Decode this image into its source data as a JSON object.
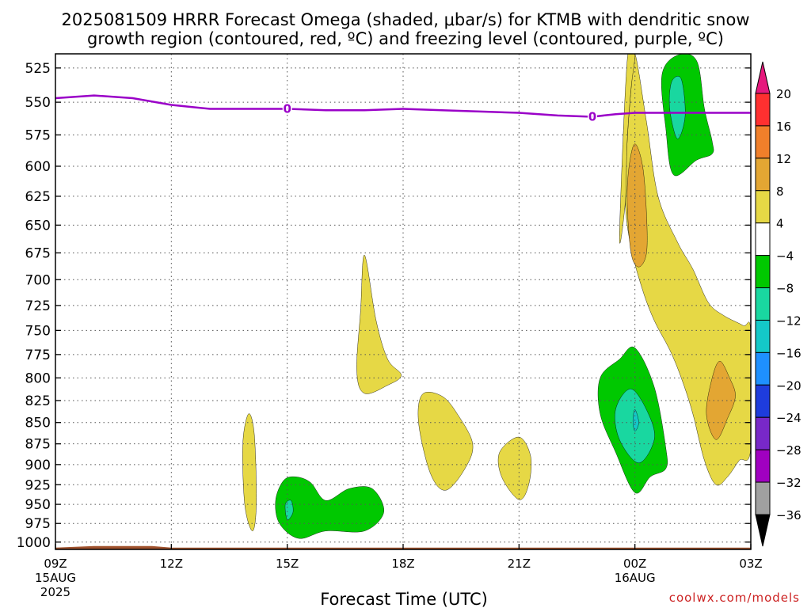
{
  "title": {
    "line1": "2025081509 HRRR Forecast Omega (shaded, μbar/s) for KTMB with dendritic snow",
    "line2": "growth region (contoured, red, ºC) and freezing level (contoured, purple, ºC)"
  },
  "credit": "coolwx.com/models",
  "colors": {
    "freezing_line": "#9a00c8",
    "ground": "#a0522d",
    "grid": "#555555"
  },
  "chart_data": {
    "type": "contour",
    "title": "2025081509 HRRR Forecast Omega (shaded, μbar/s) for KTMB with dendritic snow growth region (contoured, red, ºC) and freezing level (contoured, purple, ºC)",
    "xlabel": "Forecast Time (UTC)",
    "ylabel": "",
    "x_unit": "hours from 2025-08-15 09Z",
    "xlim": [
      0,
      18
    ],
    "ylim": [
      1010,
      515
    ],
    "y_scale": "log",
    "y_ticks": [
      525,
      550,
      575,
      600,
      625,
      650,
      675,
      700,
      725,
      750,
      775,
      800,
      825,
      850,
      875,
      900,
      925,
      950,
      975,
      1000
    ],
    "x_ticks": [
      {
        "x": 0,
        "label": "09Z",
        "sub": "15AUG",
        "sub2": "2025"
      },
      {
        "x": 3,
        "label": "12Z",
        "sub": "",
        "sub2": ""
      },
      {
        "x": 6,
        "label": "15Z",
        "sub": "",
        "sub2": ""
      },
      {
        "x": 9,
        "label": "18Z",
        "sub": "",
        "sub2": ""
      },
      {
        "x": 12,
        "label": "21Z",
        "sub": "",
        "sub2": ""
      },
      {
        "x": 15,
        "label": "00Z",
        "sub": "16AUG",
        "sub2": ""
      },
      {
        "x": 18,
        "label": "03Z",
        "sub": "",
        "sub2": ""
      }
    ],
    "grid": true,
    "colorbar": {
      "levels": [
        20,
        16,
        12,
        8,
        4,
        -4,
        -8,
        -12,
        -16,
        -20,
        -24,
        -28,
        -32,
        -36
      ],
      "colors": [
        "#ff3030",
        "#f07f2a",
        "#e3a633",
        "#e6d845",
        "#ffffff",
        "#00c800",
        "#19d7a0",
        "#14c8c8",
        "#1e90ff",
        "#1e3cdc",
        "#7828c8",
        "#a000c0",
        "#a0a0a0"
      ],
      "top_color": "#e6197d",
      "bottom_color": "#000000"
    },
    "freezing_level": {
      "label": "0",
      "label_at": [
        6,
        13.9
      ],
      "x": [
        0,
        1,
        2,
        3,
        4,
        5,
        6,
        7,
        8,
        9,
        10,
        11,
        12,
        13,
        13.9,
        14.5,
        15,
        16,
        17,
        18
      ],
      "p": [
        547,
        545,
        547,
        552,
        555,
        555,
        555,
        556,
        556,
        555,
        556,
        557,
        558,
        560,
        561,
        559,
        558,
        558,
        558,
        558
      ]
    },
    "omega_regions": [
      {
        "level": 4,
        "color": "#e6d845",
        "points": [
          [
            15.0,
            515
          ],
          [
            15.3,
            565
          ],
          [
            15.6,
            625
          ],
          [
            16.1,
            665
          ],
          [
            16.5,
            690
          ],
          [
            16.9,
            722
          ],
          [
            17.3,
            735
          ],
          [
            17.8,
            745
          ],
          [
            18.0,
            752
          ],
          [
            18.0,
            880
          ],
          [
            17.7,
            895
          ],
          [
            17.4,
            915
          ],
          [
            17.1,
            925
          ],
          [
            16.8,
            895
          ],
          [
            16.5,
            840
          ],
          [
            16.2,
            800
          ],
          [
            15.9,
            770
          ],
          [
            15.5,
            740
          ],
          [
            15.2,
            710
          ],
          [
            14.9,
            670
          ],
          [
            14.75,
            630
          ],
          [
            14.8,
            580
          ],
          [
            14.9,
            540
          ]
        ]
      },
      {
        "level": 8,
        "color": "#e3a633",
        "points": [
          [
            15.0,
            582
          ],
          [
            15.2,
            600
          ],
          [
            15.3,
            640
          ],
          [
            15.3,
            675
          ],
          [
            15.1,
            688
          ],
          [
            14.9,
            675
          ],
          [
            14.8,
            630
          ],
          [
            14.85,
            600
          ]
        ]
      },
      {
        "level": 8,
        "color": "#e3a633",
        "points": [
          [
            17.0,
            800
          ],
          [
            17.2,
            782
          ],
          [
            17.45,
            800
          ],
          [
            17.6,
            820
          ],
          [
            17.4,
            845
          ],
          [
            17.1,
            870
          ],
          [
            16.85,
            840
          ]
        ]
      },
      {
        "level": 4,
        "color": "#e6d845",
        "points": [
          [
            5.0,
            840
          ],
          [
            5.15,
            865
          ],
          [
            5.2,
            950
          ],
          [
            5.1,
            985
          ],
          [
            4.9,
            950
          ],
          [
            4.85,
            875
          ]
        ]
      },
      {
        "level": 4,
        "color": "#e6d845",
        "points": [
          [
            8.0,
            677
          ],
          [
            8.3,
            740
          ],
          [
            8.6,
            780
          ],
          [
            8.95,
            797
          ],
          [
            8.6,
            808
          ],
          [
            8.0,
            817
          ],
          [
            7.8,
            792
          ],
          [
            7.9,
            730
          ]
        ]
      },
      {
        "level": 4,
        "color": "#e6d845",
        "points": [
          [
            9.5,
            818
          ],
          [
            10.0,
            820
          ],
          [
            10.4,
            840
          ],
          [
            10.8,
            875
          ],
          [
            10.6,
            905
          ],
          [
            10.1,
            932
          ],
          [
            9.7,
            910
          ],
          [
            9.4,
            850
          ]
        ]
      },
      {
        "level": 4,
        "color": "#e6d845",
        "points": [
          [
            12.0,
            867
          ],
          [
            12.3,
            890
          ],
          [
            12.25,
            925
          ],
          [
            12.0,
            944
          ],
          [
            11.55,
            915
          ],
          [
            11.5,
            885
          ]
        ]
      },
      {
        "level": 4,
        "color": "#e6d845",
        "points": [
          [
            15.0,
            515
          ],
          [
            14.9,
            540
          ],
          [
            14.8,
            580
          ],
          [
            14.75,
            630
          ],
          [
            14.6,
            660
          ],
          [
            14.8,
            520
          ]
        ]
      },
      {
        "level": -4,
        "color": "#00c800",
        "points": [
          [
            16.1,
            516
          ],
          [
            16.6,
            520
          ],
          [
            16.8,
            555
          ],
          [
            17.0,
            580
          ],
          [
            17.0,
            590
          ],
          [
            16.6,
            595
          ],
          [
            16.0,
            607
          ],
          [
            15.8,
            570
          ],
          [
            15.7,
            530
          ]
        ]
      },
      {
        "level": -8,
        "color": "#19d7a0",
        "points": [
          [
            15.95,
            535
          ],
          [
            16.2,
            533
          ],
          [
            16.3,
            560
          ],
          [
            16.1,
            578
          ],
          [
            15.9,
            555
          ]
        ]
      },
      {
        "level": -4,
        "color": "#00c800",
        "points": [
          [
            14.6,
            780
          ],
          [
            15.0,
            768
          ],
          [
            15.5,
            810
          ],
          [
            15.8,
            880
          ],
          [
            15.8,
            905
          ],
          [
            15.4,
            915
          ],
          [
            15.0,
            935
          ],
          [
            14.5,
            885
          ],
          [
            14.1,
            840
          ],
          [
            14.1,
            800
          ]
        ]
      },
      {
        "level": -8,
        "color": "#19d7a0",
        "points": [
          [
            14.9,
            812
          ],
          [
            15.35,
            840
          ],
          [
            15.5,
            870
          ],
          [
            15.1,
            898
          ],
          [
            14.6,
            870
          ],
          [
            14.5,
            835
          ]
        ]
      },
      {
        "level": -12,
        "color": "#14c8c8",
        "points": [
          [
            15.0,
            835
          ],
          [
            15.1,
            850
          ],
          [
            15.0,
            860
          ],
          [
            14.95,
            848
          ]
        ]
      },
      {
        "level": -4,
        "color": "#00c800",
        "points": [
          [
            6.2,
            915
          ],
          [
            6.6,
            922
          ],
          [
            7.0,
            945
          ],
          [
            7.6,
            930
          ],
          [
            8.2,
            930
          ],
          [
            8.5,
            960
          ],
          [
            8.0,
            985
          ],
          [
            7.0,
            985
          ],
          [
            6.3,
            995
          ],
          [
            5.8,
            975
          ],
          [
            5.7,
            945
          ],
          [
            5.9,
            920
          ]
        ]
      },
      {
        "level": -8,
        "color": "#19d7a0",
        "points": [
          [
            5.95,
            950
          ],
          [
            6.1,
            945
          ],
          [
            6.15,
            960
          ],
          [
            6.0,
            970
          ]
        ]
      }
    ],
    "ground": [
      [
        0,
        1008
      ],
      [
        1,
        1006
      ],
      [
        2.5,
        1006
      ],
      [
        3,
        1008
      ],
      [
        18,
        1008
      ]
    ]
  }
}
